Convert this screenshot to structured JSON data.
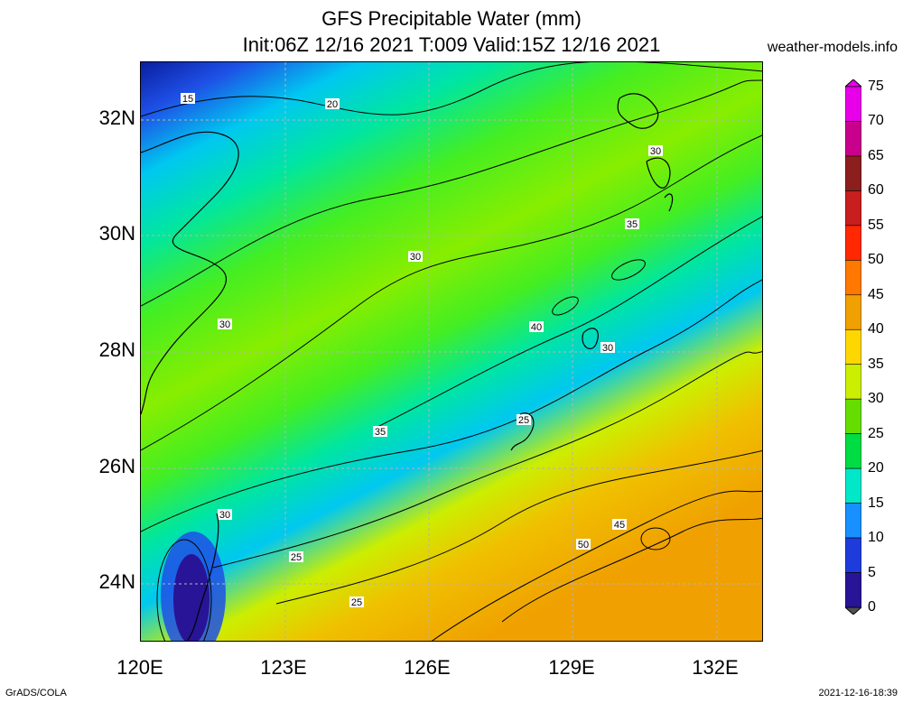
{
  "title_line1": "GFS Precipitable Water (mm)",
  "title_line2": "Init:06Z 12/16 2021 T:009 Valid:15Z 12/16 2021",
  "source": "weather-models.info",
  "footer_left": "GrADS/COLA",
  "footer_right": "2021-12-16-18:39",
  "lat_ticks": [
    "32N",
    "30N",
    "28N",
    "26N",
    "24N"
  ],
  "lon_ticks": [
    "120E",
    "123E",
    "126E",
    "129E",
    "132E"
  ],
  "colorbar": {
    "labels": [
      "75",
      "70",
      "65",
      "60",
      "55",
      "50",
      "45",
      "40",
      "35",
      "30",
      "25",
      "20",
      "15",
      "10",
      "5",
      "0"
    ],
    "colors": [
      "#e800e8",
      "#c8008c",
      "#8c1e1e",
      "#c81e1e",
      "#ff2800",
      "#ff7800",
      "#f0a000",
      "#ffd700",
      "#ccee00",
      "#66dd00",
      "#00dd44",
      "#00e8c8",
      "#1890ff",
      "#1e3cdc",
      "#281496",
      "#505050"
    ]
  },
  "contour_labels": [
    "15",
    "20",
    "30",
    "30",
    "35",
    "30",
    "40",
    "30",
    "35",
    "25",
    "30",
    "25",
    "45",
    "50",
    "25"
  ]
}
